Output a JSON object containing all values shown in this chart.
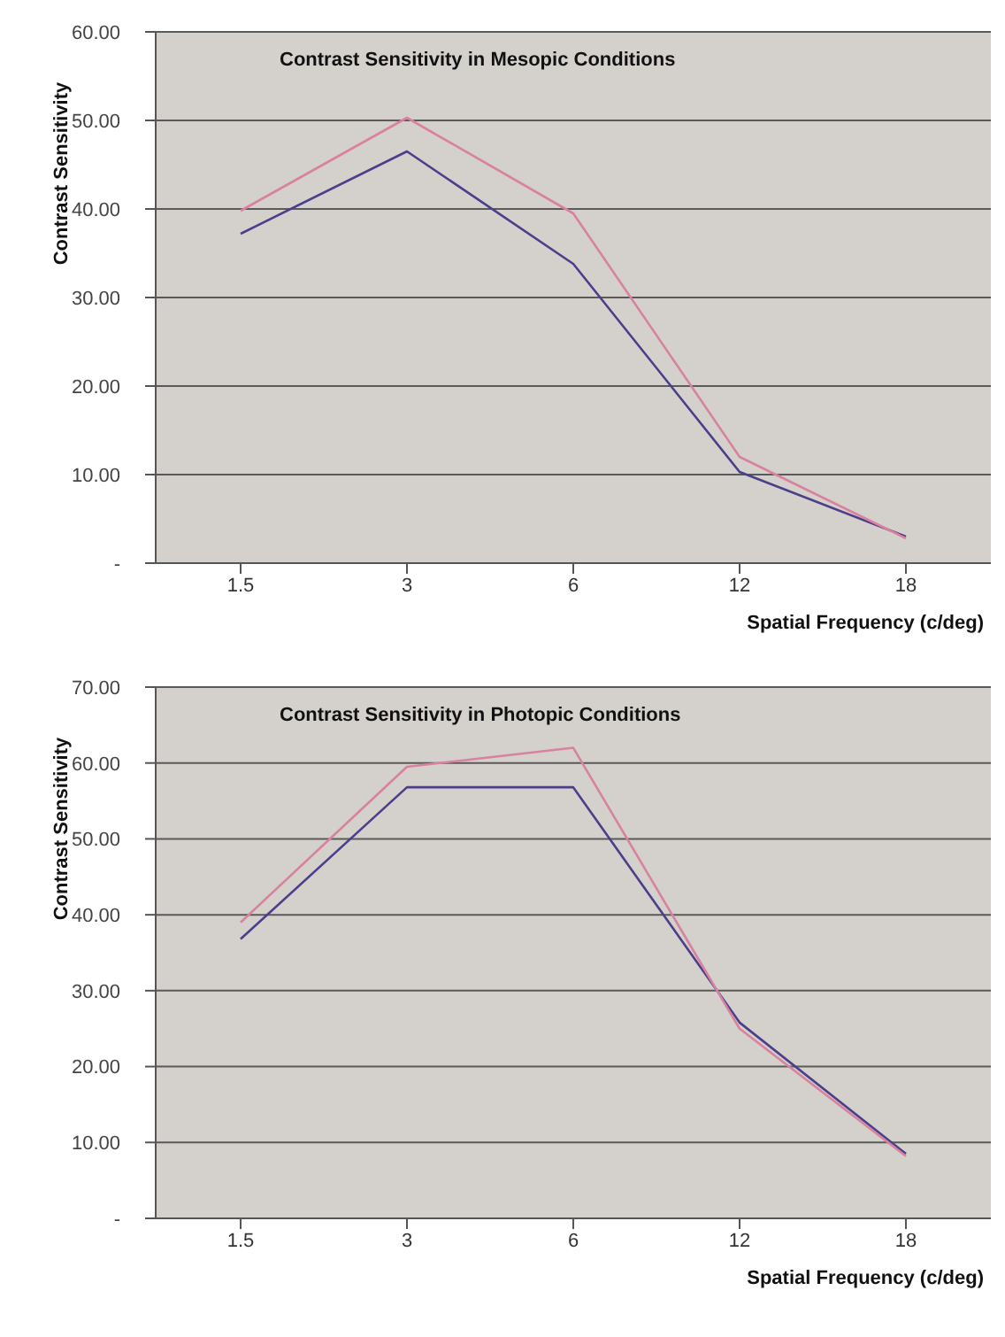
{
  "chart_data": [
    {
      "type": "line",
      "title": "Contrast Sensitivity in Mesopic Conditions",
      "xlabel": "Spatial Frequency (c/deg)",
      "ylabel": "Contrast Sensitivity",
      "categories": [
        "1.5",
        "3",
        "6",
        "12",
        "18"
      ],
      "series": [
        {
          "color": "#4b3f8c",
          "values": [
            37.2,
            46.5,
            33.8,
            10.3,
            3.0
          ]
        },
        {
          "color": "#d9829f",
          "values": [
            39.8,
            50.3,
            39.5,
            12.0,
            2.8
          ]
        }
      ],
      "ylim": [
        0,
        60
      ],
      "yticks": [
        {
          "value": 0,
          "label": "-"
        },
        {
          "value": 10,
          "label": "10.00"
        },
        {
          "value": 20,
          "label": "20.00"
        },
        {
          "value": 30,
          "label": "30.00"
        },
        {
          "value": 40,
          "label": "40.00"
        },
        {
          "value": 50,
          "label": "50.00"
        },
        {
          "value": 60,
          "label": "60.00"
        }
      ],
      "grid": "y",
      "marker": "none",
      "line_style": "solid"
    },
    {
      "type": "line",
      "title": "Contrast Sensitivity in Photopic Conditions",
      "xlabel": "Spatial Frequency (c/deg)",
      "ylabel": "Contrast Sensitivity",
      "categories": [
        "1.5",
        "3",
        "6",
        "12",
        "18"
      ],
      "series": [
        {
          "color": "#4b3f8c",
          "values": [
            36.8,
            56.8,
            56.8,
            25.8,
            8.5
          ]
        },
        {
          "color": "#d9829f",
          "values": [
            39.0,
            59.5,
            62.0,
            25.0,
            8.2
          ]
        }
      ],
      "ylim": [
        0,
        70
      ],
      "yticks": [
        {
          "value": 0,
          "label": "-"
        },
        {
          "value": 10,
          "label": "10.00"
        },
        {
          "value": 20,
          "label": "20.00"
        },
        {
          "value": 30,
          "label": "30.00"
        },
        {
          "value": 40,
          "label": "40.00"
        },
        {
          "value": 50,
          "label": "50.00"
        },
        {
          "value": 60,
          "label": "60.00"
        },
        {
          "value": 70,
          "label": "70.00"
        }
      ],
      "grid": "y",
      "marker": "none",
      "line_style": "solid"
    }
  ]
}
